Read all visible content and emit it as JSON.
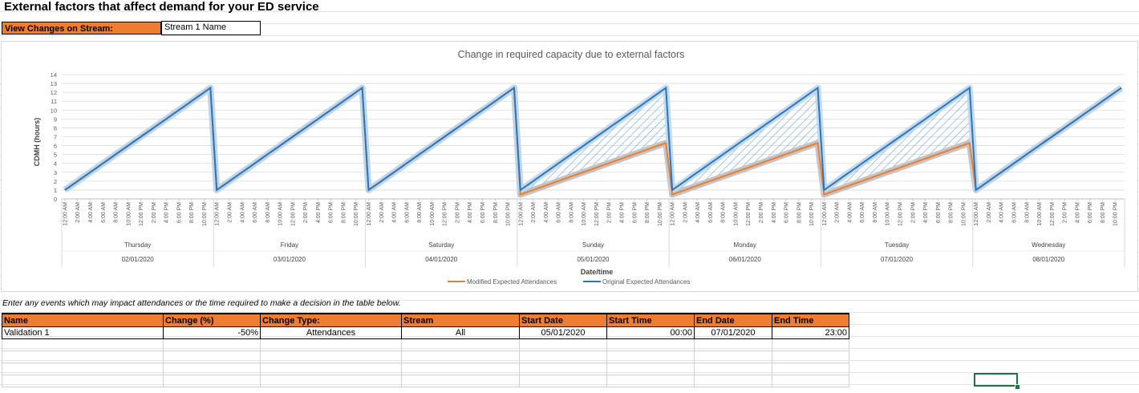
{
  "page": {
    "title": "External factors that affect demand for your ED service",
    "stream_label": "View Changes on Stream:",
    "stream_value": "Stream 1 Name",
    "instructions": "Enter any events which may impact attendances or the time required to make a decision in the table below."
  },
  "chart_data": {
    "type": "line",
    "title": "Change in required capacity due to external factors",
    "xlabel": "Date/time",
    "ylabel": "CDMH (hours)",
    "ylim": [
      0,
      14
    ],
    "yticks": [
      "0",
      "1",
      "2",
      "3",
      "4",
      "5",
      "6",
      "7",
      "8",
      "9",
      "10",
      "11",
      "12",
      "13",
      "14"
    ],
    "grid": true,
    "legend_position": "bottom",
    "time_tick_labels": [
      "12:00 AM",
      "2:00 AM",
      "4:00 AM",
      "6:00 AM",
      "8:00 AM",
      "10:00 AM",
      "12:00 PM",
      "2:00 PM",
      "4:00 PM",
      "6:00 PM",
      "8:00 PM",
      "10:00 PM"
    ],
    "days": [
      {
        "day": "Thursday",
        "date": "02/01/2020"
      },
      {
        "day": "Friday",
        "date": "03/01/2020"
      },
      {
        "day": "Saturday",
        "date": "04/01/2020"
      },
      {
        "day": "Sunday",
        "date": "05/01/2020"
      },
      {
        "day": "Monday",
        "date": "06/01/2020"
      },
      {
        "day": "Tuesday",
        "date": "07/01/2020"
      },
      {
        "day": "Wednesday",
        "date": "08/01/2020"
      }
    ],
    "series": [
      {
        "name": "Modified Expected Attendances",
        "color": "#ED7D31",
        "day_start": [
          1.0,
          1.0,
          1.0,
          0.5,
          0.5,
          0.5,
          1.0
        ],
        "day_end": [
          12.5,
          12.5,
          12.5,
          6.3,
          6.3,
          6.3,
          12.5
        ]
      },
      {
        "name": "Original Expected Attendances",
        "color": "#2E75B6",
        "day_start": [
          1.0,
          1.0,
          1.0,
          1.0,
          1.0,
          1.0,
          1.0
        ],
        "day_end": [
          12.5,
          12.5,
          12.5,
          12.5,
          12.5,
          12.5,
          12.5
        ]
      }
    ]
  },
  "events_table": {
    "columns": [
      "Name",
      "Change (%)",
      "Change Type:",
      "Stream",
      "Start Date",
      "Start Time",
      "End Date",
      "End Time"
    ],
    "rows": [
      [
        "Validation 1",
        "-50%",
        "Attendances",
        "All",
        "05/01/2020",
        "00:00",
        "07/01/2020",
        "23:00"
      ]
    ],
    "empty_rows": 4
  }
}
